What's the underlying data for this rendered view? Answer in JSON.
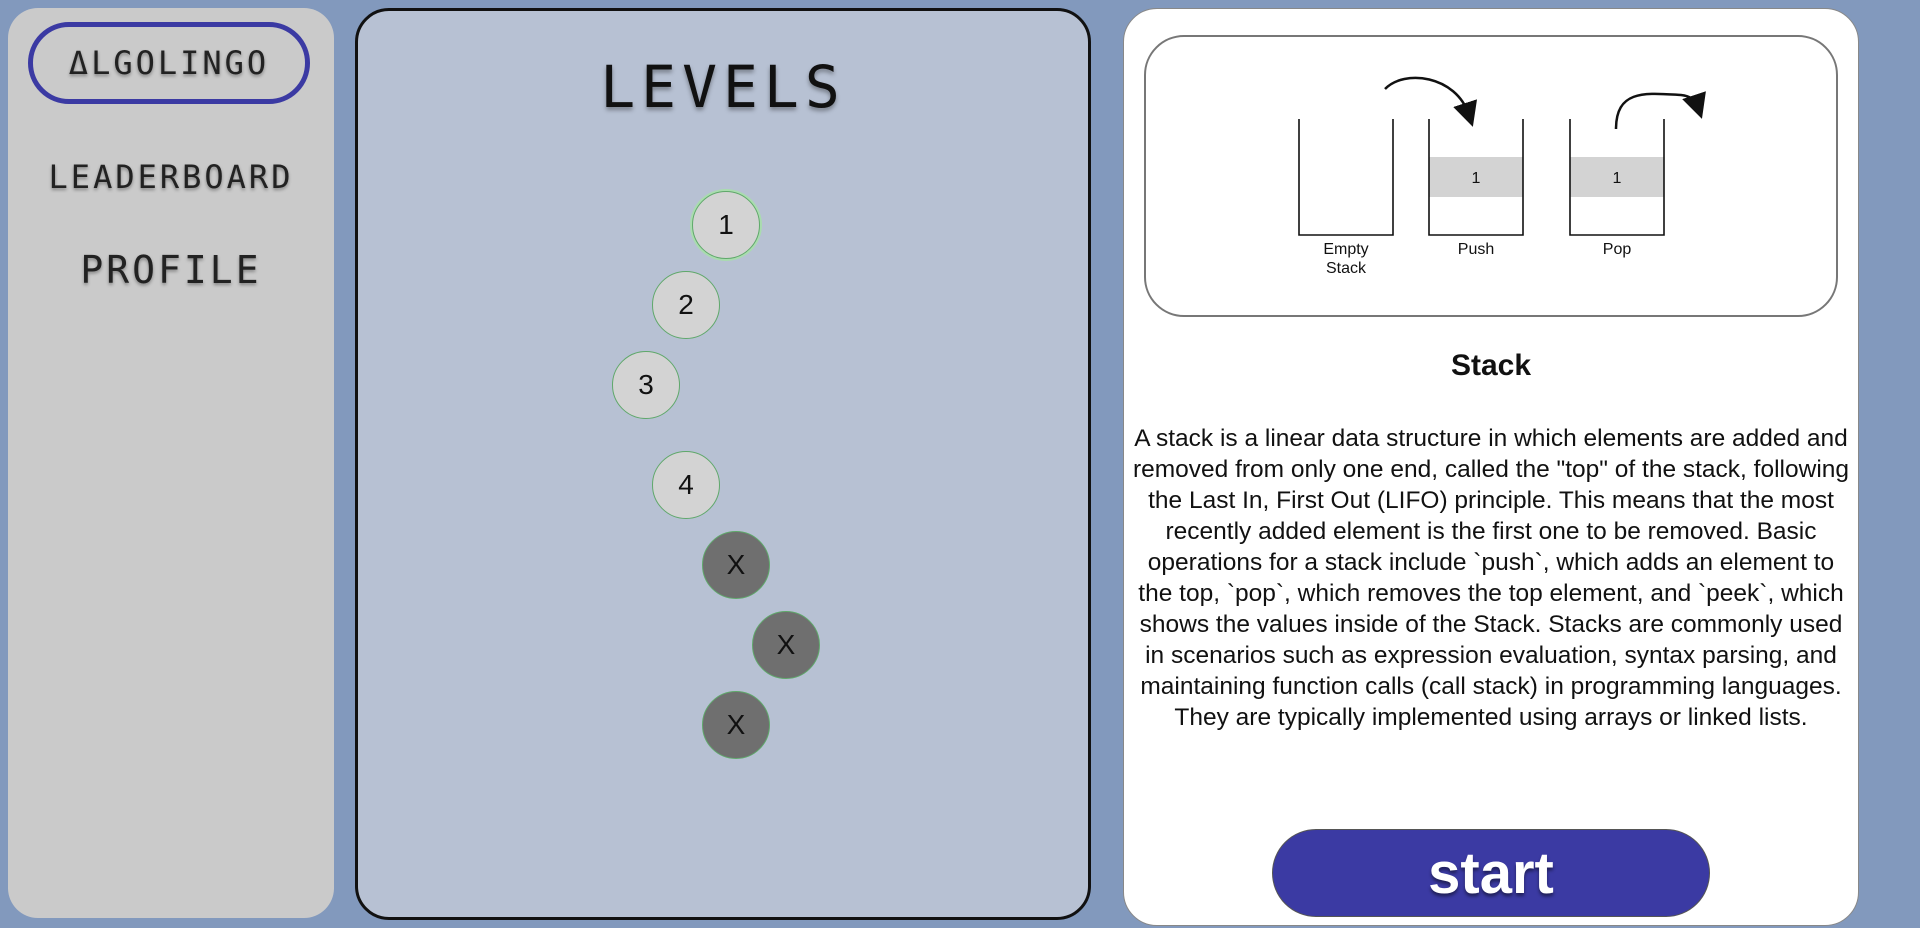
{
  "sidebar": {
    "logo": "ΔLGOLINGO",
    "items": [
      {
        "label": "LEADERBOARD"
      },
      {
        "label": "PROFILE"
      }
    ]
  },
  "levels": {
    "title": "LEVELS",
    "nodes": [
      {
        "label": "1",
        "state": "current"
      },
      {
        "label": "2",
        "state": "unlocked"
      },
      {
        "label": "3",
        "state": "unlocked"
      },
      {
        "label": "4",
        "state": "unlocked"
      },
      {
        "label": "X",
        "state": "locked"
      },
      {
        "label": "X",
        "state": "locked"
      },
      {
        "label": "X",
        "state": "locked"
      }
    ]
  },
  "info": {
    "diagram": {
      "stacks": [
        {
          "caption_line1": "Empty",
          "caption_line2": "Stack",
          "value": ""
        },
        {
          "caption_line1": "Push",
          "caption_line2": "",
          "value": "1"
        },
        {
          "caption_line1": "Pop",
          "caption_line2": "",
          "value": "1"
        }
      ]
    },
    "title": "Stack",
    "description": "A stack is a linear data structure in which elements are added and removed from only one end, called the \"top\" of the stack, following the Last In, First Out (LIFO) principle. This means that the most recently added element is the first one to be removed. Basic operations for a stack include `push`, which adds an element to the top, `pop`, which removes the top element, and `peek`, which shows the values inside of the Stack. Stacks are commonly used in scenarios such as expression evaluation, syntax parsing, and maintaining function calls (call stack) in programming languages. They are typically implemented using arrays or linked lists.",
    "start_label": "start"
  },
  "colors": {
    "background": "#8299bd",
    "accent": "#3b3aa3",
    "sidebar": "#cacaca",
    "levels_panel": "#b7c1d3",
    "node_unlocked": "#d3d3d3",
    "node_locked": "#6f6f6f"
  }
}
